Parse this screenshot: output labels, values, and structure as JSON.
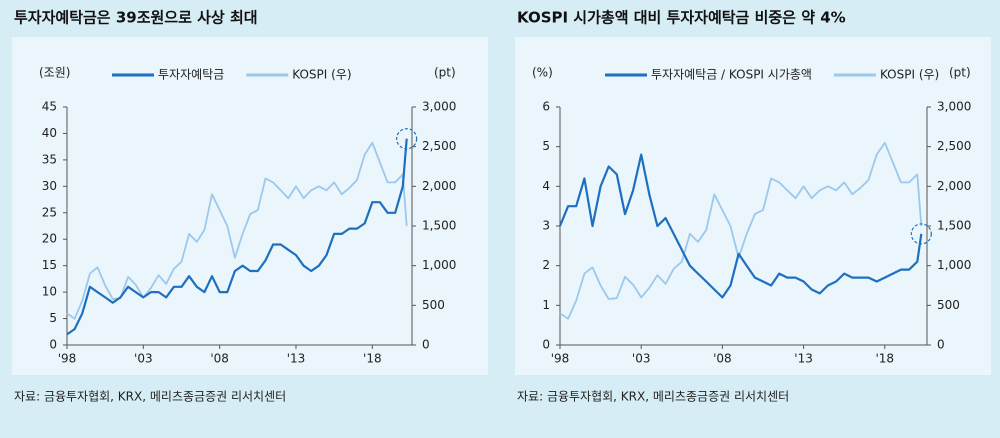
{
  "chart_data": [
    {
      "type": "line",
      "title": "투자자예탁금은 39조원으로 사상 최대",
      "y_label": "(조원)",
      "y2_label": "(pt)",
      "source": "자료: 금융투자협회, KRX, 메리츠종금증권 리서치센터",
      "x": [
        1998.0,
        1998.5,
        1999.0,
        1999.5,
        2000.0,
        2000.5,
        2001.0,
        2001.5,
        2002.0,
        2002.5,
        2003.0,
        2003.5,
        2004.0,
        2004.5,
        2005.0,
        2005.5,
        2006.0,
        2006.5,
        2007.0,
        2007.5,
        2008.0,
        2008.5,
        2009.0,
        2009.5,
        2010.0,
        2010.5,
        2011.0,
        2011.5,
        2012.0,
        2012.5,
        2013.0,
        2013.5,
        2014.0,
        2014.5,
        2015.0,
        2015.5,
        2016.0,
        2016.5,
        2017.0,
        2017.5,
        2018.0,
        2018.5,
        2019.0,
        2019.5,
        2020.0,
        2020.25
      ],
      "xlim": [
        1998,
        2020.6
      ],
      "xticks": [
        {
          "value": 1998,
          "label": "'98"
        },
        {
          "value": 2003,
          "label": "'03"
        },
        {
          "value": 2008,
          "label": "'08"
        },
        {
          "value": 2013,
          "label": "'13"
        },
        {
          "value": 2018,
          "label": "'18"
        }
      ],
      "ylim": [
        0,
        45
      ],
      "yticks": [
        0,
        5,
        10,
        15,
        20,
        25,
        30,
        35,
        40,
        45
      ],
      "y2lim": [
        0,
        3000
      ],
      "y2ticks": [
        0,
        500,
        {
          "value": 1000,
          "label": "1,000"
        },
        {
          "value": 1500,
          "label": "1,500"
        },
        {
          "value": 2000,
          "label": "2,000"
        },
        {
          "value": 2500,
          "label": "2,500"
        },
        {
          "value": 3000,
          "label": "3,000"
        }
      ],
      "series": [
        {
          "name": "투자자예탁금",
          "color": "#1f6fc0",
          "axis": "y",
          "values": [
            2,
            3,
            6,
            11,
            10,
            9,
            8,
            9,
            11,
            10,
            9,
            10,
            10,
            9,
            11,
            11,
            13,
            11,
            10,
            13,
            10,
            10,
            14,
            15,
            14,
            14,
            16,
            19,
            19,
            18,
            17,
            15,
            14,
            15,
            17,
            21,
            21,
            22,
            22,
            23,
            27,
            27,
            25,
            25,
            30,
            39
          ]
        },
        {
          "name": "KOSPI (우)",
          "color": "#9cc8ee",
          "axis": "y2",
          "values": [
            400,
            330,
            560,
            900,
            980,
            750,
            580,
            590,
            860,
            760,
            600,
            720,
            880,
            770,
            960,
            1050,
            1400,
            1300,
            1450,
            1900,
            1700,
            1500,
            1100,
            1400,
            1650,
            1700,
            2100,
            2050,
            1950,
            1850,
            2000,
            1850,
            1950,
            2000,
            1950,
            2050,
            1900,
            1980,
            2080,
            2400,
            2550,
            2300,
            2050,
            2050,
            2150,
            1500
          ]
        }
      ]
    },
    {
      "type": "line",
      "title": "KOSPI 시가총액 대비 투자자예탁금 비중은 약 4%",
      "y_label": "(%)",
      "y2_label": "(pt)",
      "source": "자료: 금융투자협회, KRX, 메리츠종금증권 리서치센터",
      "x": [
        1998.0,
        1998.5,
        1999.0,
        1999.5,
        2000.0,
        2000.5,
        2001.0,
        2001.5,
        2002.0,
        2002.5,
        2003.0,
        2003.5,
        2004.0,
        2004.5,
        2005.0,
        2005.5,
        2006.0,
        2006.5,
        2007.0,
        2007.5,
        2008.0,
        2008.5,
        2009.0,
        2009.5,
        2010.0,
        2010.5,
        2011.0,
        2011.5,
        2012.0,
        2012.5,
        2013.0,
        2013.5,
        2014.0,
        2014.5,
        2015.0,
        2015.5,
        2016.0,
        2016.5,
        2017.0,
        2017.5,
        2018.0,
        2018.5,
        2019.0,
        2019.5,
        2020.0,
        2020.25
      ],
      "xlim": [
        1998,
        2020.6
      ],
      "xticks": [
        {
          "value": 1998,
          "label": "'98"
        },
        {
          "value": 2003,
          "label": "'03"
        },
        {
          "value": 2008,
          "label": "'08"
        },
        {
          "value": 2013,
          "label": "'13"
        },
        {
          "value": 2018,
          "label": "'18"
        }
      ],
      "ylim": [
        0,
        6
      ],
      "yticks": [
        0,
        1,
        2,
        3,
        4,
        5,
        6
      ],
      "y2lim": [
        0,
        3000
      ],
      "y2ticks": [
        0,
        500,
        {
          "value": 1000,
          "label": "1,000"
        },
        {
          "value": 1500,
          "label": "1,500"
        },
        {
          "value": 2000,
          "label": "2,000"
        },
        {
          "value": 2500,
          "label": "2,500"
        },
        {
          "value": 3000,
          "label": "3,000"
        }
      ],
      "series": [
        {
          "name": "투자자예탁금 / KOSPI 시가총액",
          "color": "#1f6fc0",
          "axis": "y",
          "values": [
            3.0,
            3.5,
            3.5,
            4.2,
            3.0,
            4.0,
            4.5,
            4.3,
            3.3,
            3.9,
            4.8,
            3.8,
            3.0,
            3.2,
            2.8,
            2.4,
            2.0,
            1.8,
            1.6,
            1.4,
            1.2,
            1.5,
            2.3,
            2.0,
            1.7,
            1.6,
            1.5,
            1.8,
            1.7,
            1.7,
            1.6,
            1.4,
            1.3,
            1.5,
            1.6,
            1.8,
            1.7,
            1.7,
            1.7,
            1.6,
            1.7,
            1.8,
            1.9,
            1.9,
            2.1,
            2.8
          ]
        },
        {
          "name": "KOSPI (우)",
          "color": "#9cc8ee",
          "axis": "y2",
          "values": [
            400,
            330,
            560,
            900,
            980,
            750,
            580,
            590,
            860,
            760,
            600,
            720,
            880,
            770,
            960,
            1050,
            1400,
            1300,
            1450,
            1900,
            1700,
            1500,
            1100,
            1400,
            1650,
            1700,
            2100,
            2050,
            1950,
            1850,
            2000,
            1850,
            1950,
            2000,
            1950,
            2050,
            1900,
            1980,
            2080,
            2400,
            2550,
            2300,
            2050,
            2050,
            2150,
            1500
          ]
        }
      ]
    }
  ]
}
